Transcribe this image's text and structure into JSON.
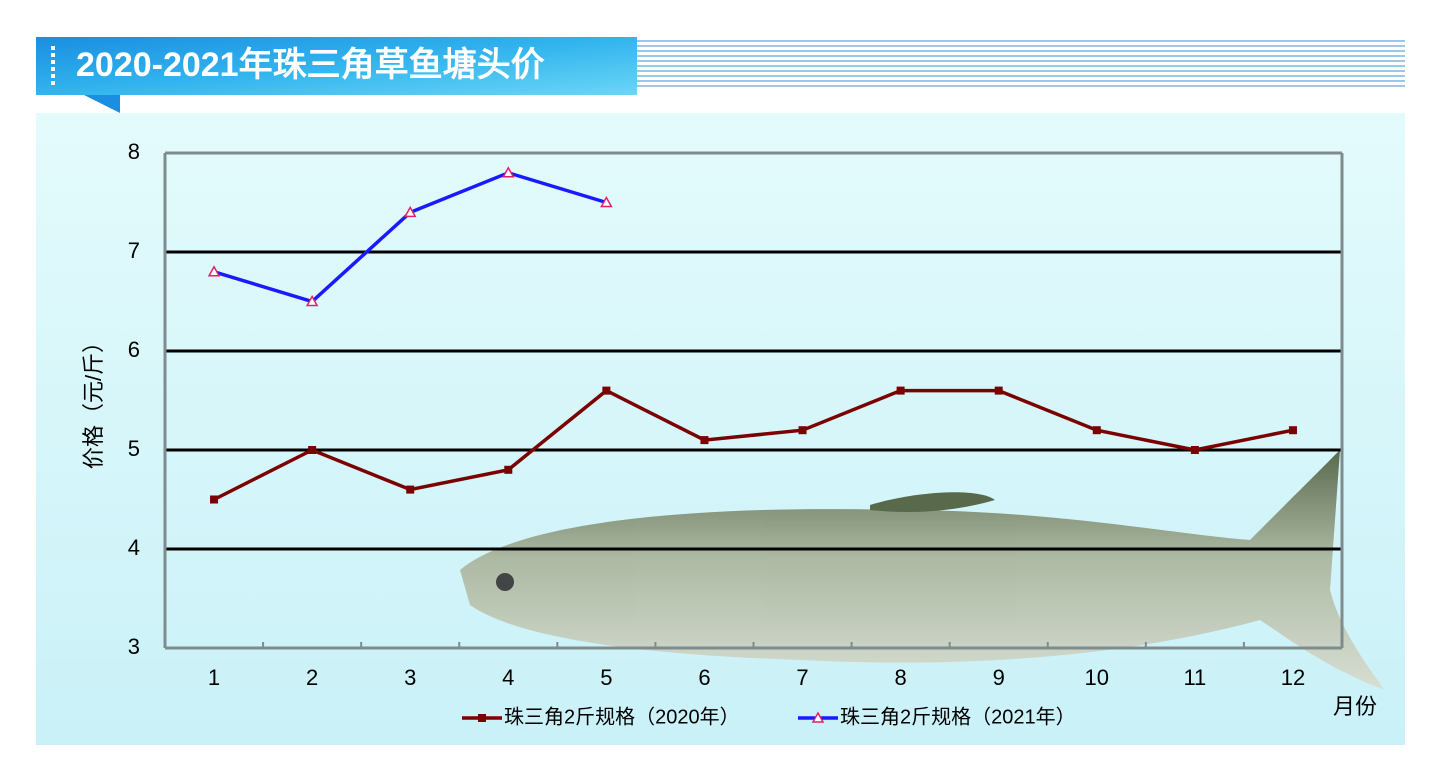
{
  "chart_data": {
    "type": "line",
    "title": "2020-2021年珠三角草鱼塘头价",
    "y_label": "价格（元/斤）",
    "x_label": "月份",
    "categories": [
      "1",
      "2",
      "3",
      "4",
      "5",
      "6",
      "7",
      "8",
      "9",
      "10",
      "11",
      "12"
    ],
    "series": [
      {
        "name": "珠三角2斤规格（2020年）",
        "color": "#7b0000",
        "marker": "square",
        "values": [
          4.5,
          5.0,
          4.6,
          4.8,
          5.6,
          5.1,
          5.2,
          5.6,
          5.6,
          5.2,
          5.0,
          5.2
        ]
      },
      {
        "name": "珠三角2斤规格（2021年）",
        "color": "#1a1aff",
        "marker": "triangle",
        "values": [
          6.8,
          6.5,
          7.4,
          7.8,
          7.5,
          null,
          null,
          null,
          null,
          null,
          null,
          null
        ]
      }
    ],
    "ylim": [
      3,
      8
    ],
    "yticks": [
      3,
      4,
      5,
      6,
      7,
      8
    ],
    "grid": true,
    "legend": "bottom"
  }
}
